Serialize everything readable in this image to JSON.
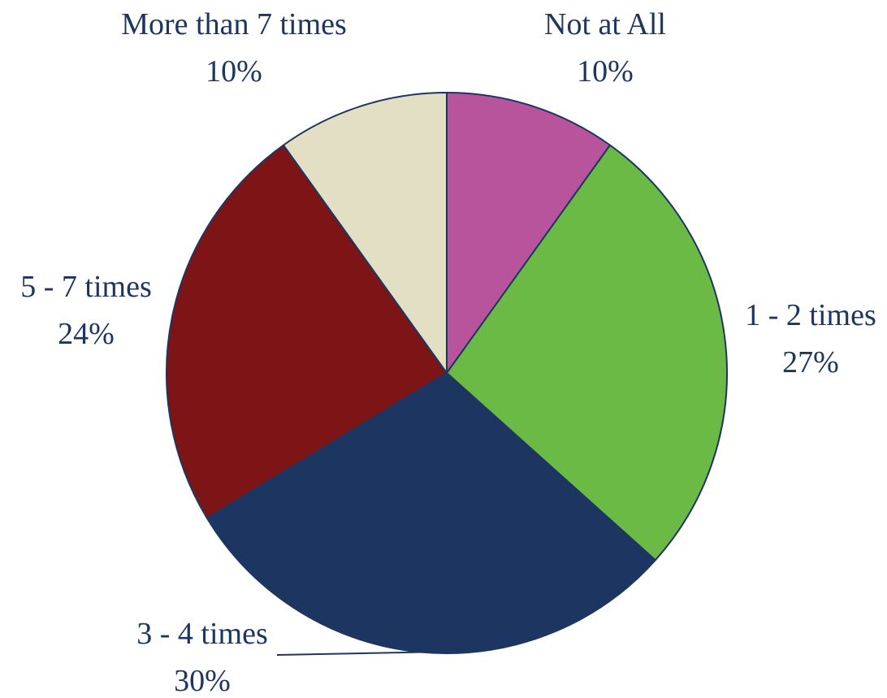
{
  "chart_data": {
    "type": "pie",
    "title": "",
    "slices": [
      {
        "label": "Not at All",
        "value": 10,
        "display": "10%",
        "color": "#b8549c"
      },
      {
        "label": "1 - 2 times",
        "value": 27,
        "display": "27%",
        "color": "#6aba45"
      },
      {
        "label": "3 - 4 times",
        "value": 30,
        "display": "30%",
        "color": "#1d3661"
      },
      {
        "label": "5 - 7 times",
        "value": 24,
        "display": "24%",
        "color": "#7d1517"
      },
      {
        "label": "More than 7 times",
        "value": 10,
        "display": "10%",
        "color": "#e2dfc5"
      }
    ],
    "start": "12 o'clock",
    "direction": "clockwise",
    "legend": "none",
    "label_color": "#1d3661",
    "border_color": "#1d3661"
  }
}
